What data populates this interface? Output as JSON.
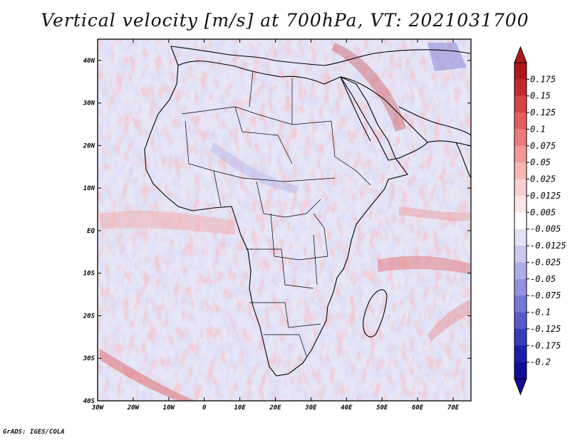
{
  "title": "Vertical velocity [m/s] at 700hPa, VT: 2021031700",
  "credit": "GrADS: IGES/COLA",
  "map": {
    "lat_labels": [
      "40N",
      "30N",
      "20N",
      "10N",
      "EQ",
      "10S",
      "20S",
      "30S",
      "40S"
    ],
    "lon_labels": [
      "30W",
      "20W",
      "10W",
      "0",
      "10E",
      "20E",
      "30E",
      "40E",
      "50E",
      "60E",
      "70E"
    ],
    "lon_range": [
      -30,
      75
    ],
    "lat_range": [
      -40,
      45
    ]
  },
  "colorbar": {
    "labels": [
      "0.175",
      "0.15",
      "0.125",
      "0.1",
      "0.075",
      "0.05",
      "0.025",
      "0.0125",
      "0.005",
      "-0.005",
      "-0.0125",
      "-0.025",
      "-0.05",
      "-0.075",
      "-0.1",
      "-0.125",
      "-0.175",
      "-0.2"
    ],
    "colors": [
      "#b01818",
      "#c42a2a",
      "#d84444",
      "#e45e5e",
      "#ee7a7a",
      "#f29898",
      "#f6b4b4",
      "#f9cfcf",
      "#fbe6e6",
      "#ffffff",
      "#e2e2f6",
      "#c8c8f0",
      "#adadea",
      "#9292e2",
      "#7777d8",
      "#5a5acc",
      "#3a3abc",
      "#1e1ea8",
      "#120e98"
    ]
  }
}
